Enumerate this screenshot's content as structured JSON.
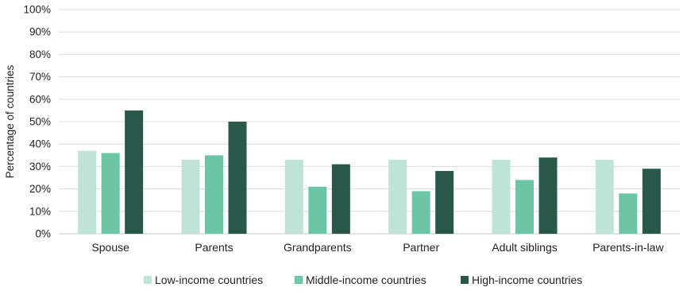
{
  "chart_data": {
    "type": "bar",
    "title": "",
    "xlabel": "",
    "ylabel": "Percentage of countries",
    "ylim": [
      0,
      100
    ],
    "y_ticks": [
      "0%",
      "10%",
      "20%",
      "30%",
      "40%",
      "50%",
      "60%",
      "70%",
      "80%",
      "90%",
      "100%"
    ],
    "grid": true,
    "legend_position": "bottom",
    "categories": [
      "Spouse",
      "Parents",
      "Grandparents",
      "Partner",
      "Adult siblings",
      "Parents-in-law"
    ],
    "series": [
      {
        "name": "Low-income countries",
        "color": "#bfe3d6",
        "values": [
          37,
          33,
          33,
          33,
          33,
          33
        ]
      },
      {
        "name": "Middle-income countries",
        "color": "#6cc5a4",
        "values": [
          36,
          35,
          21,
          19,
          24,
          18
        ]
      },
      {
        "name": "High-income countries",
        "color": "#29574a",
        "values": [
          55,
          50,
          31,
          28,
          34,
          29
        ]
      }
    ]
  }
}
